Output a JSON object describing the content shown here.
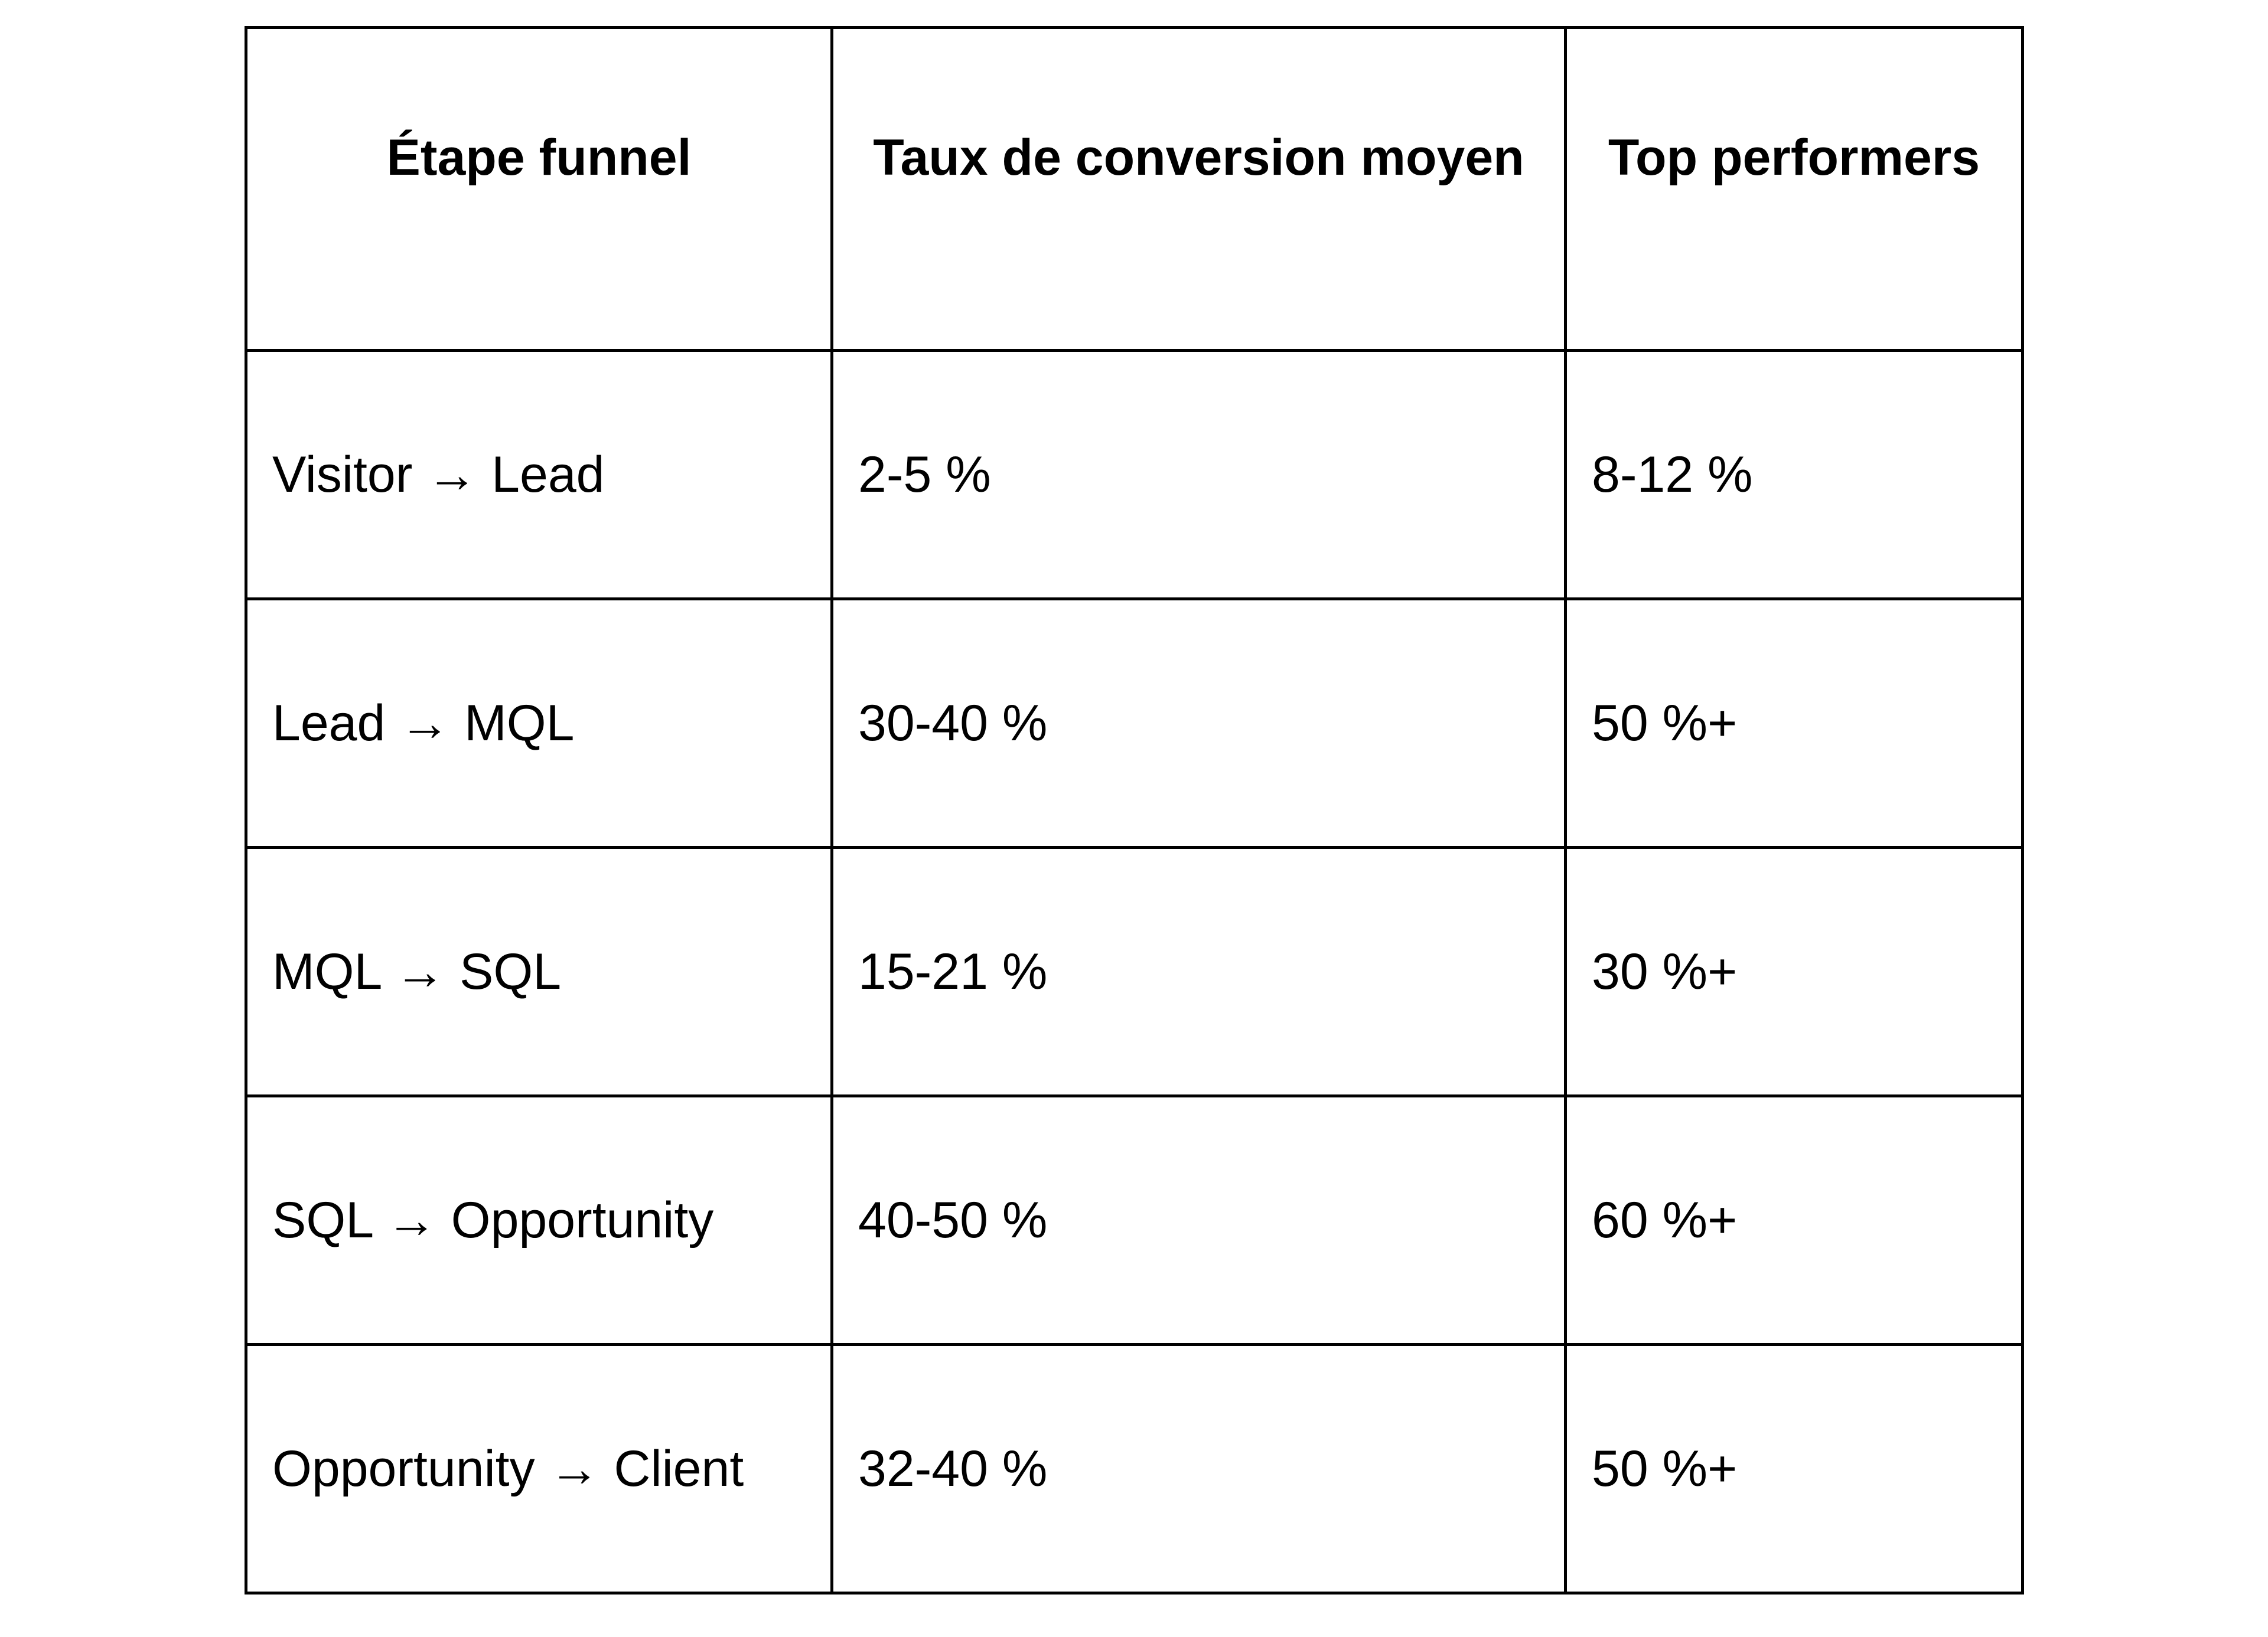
{
  "table": {
    "headers": [
      "Étape funnel",
      "Taux de conversion moyen",
      "Top performers"
    ],
    "rows": [
      {
        "stage": "Visitor → Lead",
        "average": "2-5 %",
        "top": "8-12 %"
      },
      {
        "stage": "Lead → MQL",
        "average": "30-40 %",
        "top": "50 %+"
      },
      {
        "stage": "MQL → SQL",
        "average": "15-21 %",
        "top": "30 %+"
      },
      {
        "stage": "SQL → Opportunity",
        "average": "40-50 %",
        "top": "60 %+"
      },
      {
        "stage": "Opportunity → Client",
        "average": "32-40 %",
        "top": "50 %+"
      }
    ]
  }
}
